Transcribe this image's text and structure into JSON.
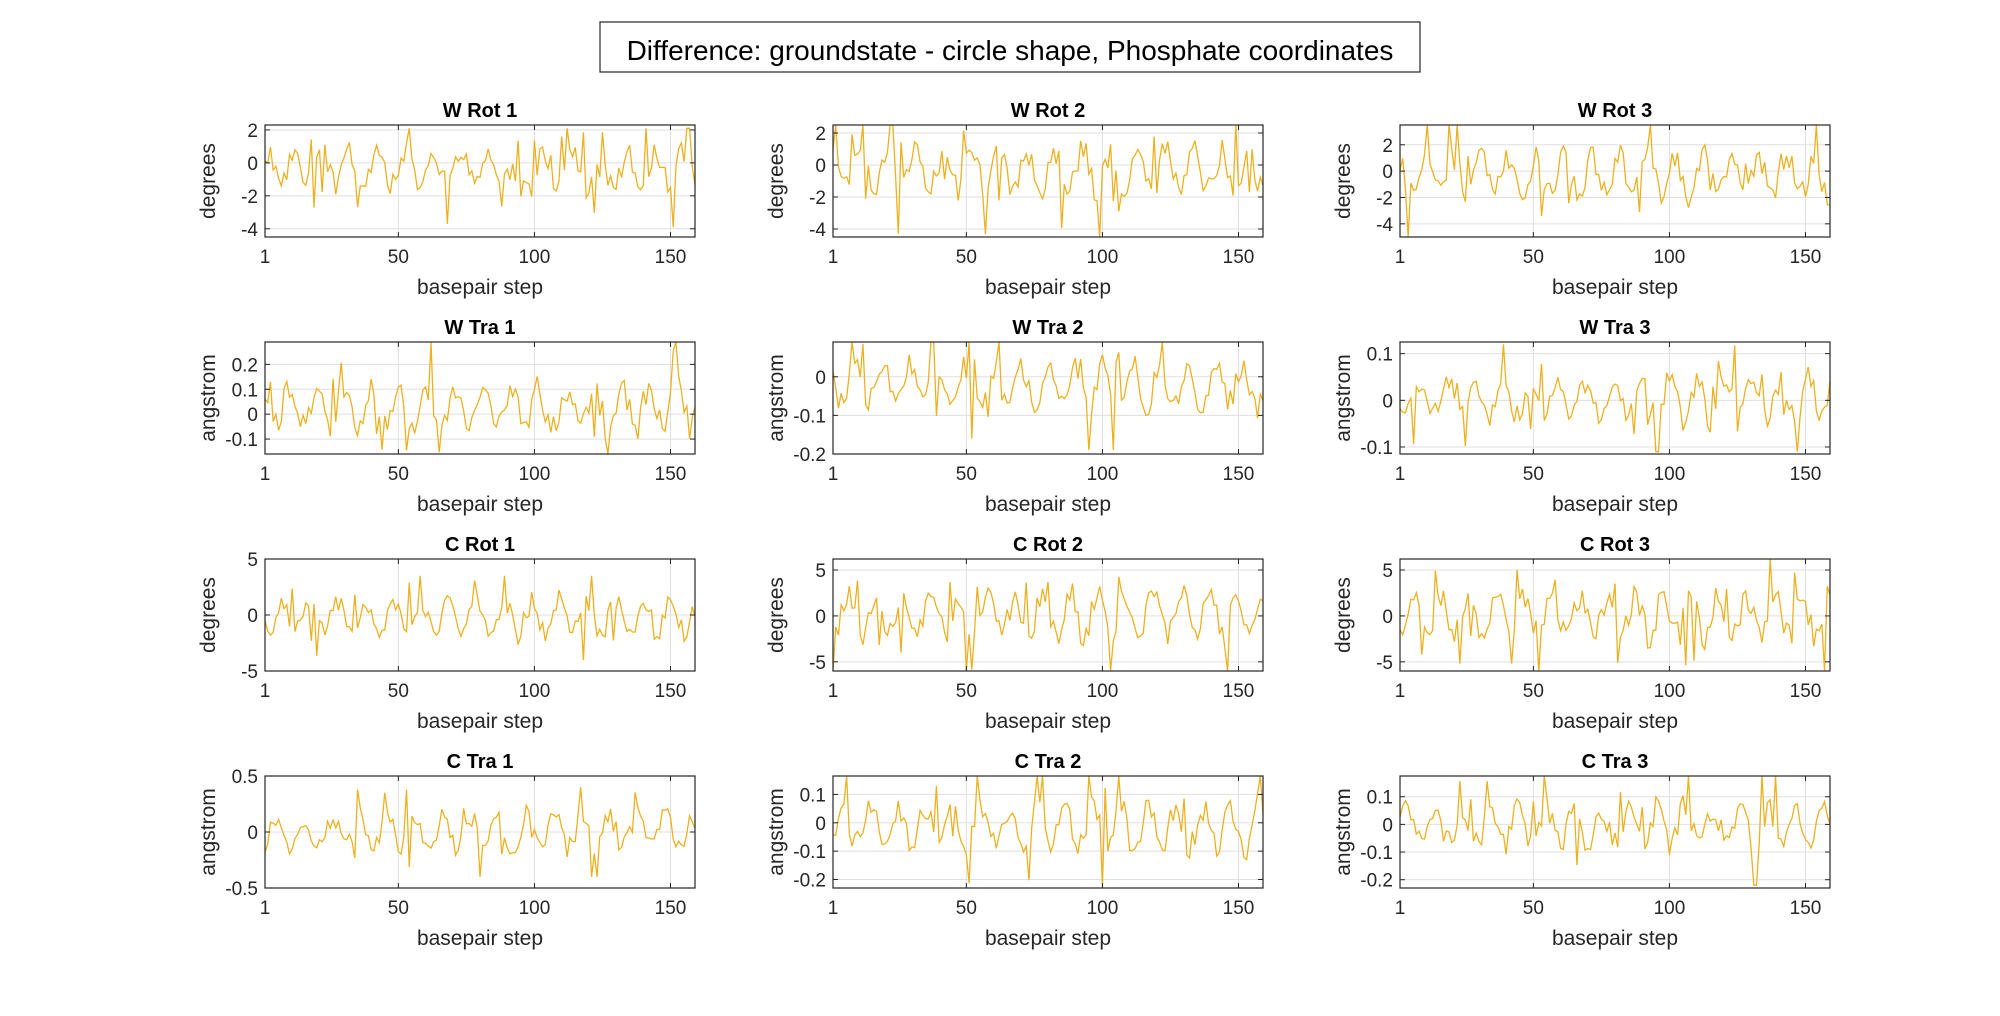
{
  "figure": {
    "title": "Difference: groundstate - circle shape, Phosphate coordinates",
    "line_color": "#EDB120",
    "axes_color": "#262626",
    "grid_color": "#DFDFDF"
  },
  "chart_data": [
    {
      "type": "line",
      "title": "W Rot 1",
      "xlabel": "basepair step",
      "ylabel": "degrees",
      "xlim": [
        1,
        159
      ],
      "ylim": [
        -4.5,
        2.3
      ],
      "xticks": [
        1,
        50,
        100,
        150
      ],
      "yticks": [
        2,
        0,
        -2,
        -4
      ],
      "grid": true,
      "n_points": 159,
      "series_seed": 11,
      "value_range": [
        -3.9,
        2.1
      ],
      "series_values": "estimated trace, 159 points"
    },
    {
      "type": "line",
      "title": "W Rot 2",
      "xlabel": "basepair step",
      "ylabel": "degrees",
      "xlim": [
        1,
        159
      ],
      "ylim": [
        -4.5,
        2.5
      ],
      "xticks": [
        1,
        50,
        100,
        150
      ],
      "yticks": [
        2,
        0,
        -2,
        -4
      ],
      "grid": true,
      "n_points": 159,
      "series_seed": 12,
      "value_range": [
        -4.5,
        2.5
      ],
      "series_values": "estimated trace, 159 points"
    },
    {
      "type": "line",
      "title": "W Rot 3",
      "xlabel": "basepair step",
      "ylabel": "degrees",
      "xlim": [
        1,
        159
      ],
      "ylim": [
        -5.0,
        3.5
      ],
      "xticks": [
        1,
        50,
        100,
        150
      ],
      "yticks": [
        2,
        0,
        -2,
        -4
      ],
      "grid": true,
      "n_points": 159,
      "series_seed": 13,
      "value_range": [
        -5.0,
        3.5
      ],
      "series_values": "estimated trace, 159 points"
    },
    {
      "type": "line",
      "title": "W Tra 1",
      "xlabel": "basepair step",
      "ylabel": "angstrom",
      "xlim": [
        1,
        159
      ],
      "ylim": [
        -0.16,
        0.29
      ],
      "xticks": [
        1,
        50,
        100,
        150
      ],
      "yticks": [
        0.2,
        0.1,
        0,
        -0.1
      ],
      "grid": true,
      "n_points": 159,
      "series_seed": 14,
      "value_range": [
        -0.16,
        0.29
      ],
      "series_values": "estimated trace, 159 points"
    },
    {
      "type": "line",
      "title": "W Tra 2",
      "xlabel": "basepair step",
      "ylabel": "angstrom",
      "xlim": [
        1,
        159
      ],
      "ylim": [
        -0.2,
        0.09
      ],
      "xticks": [
        1,
        50,
        100,
        150
      ],
      "yticks": [
        0,
        -0.1,
        -0.2
      ],
      "grid": true,
      "n_points": 159,
      "series_seed": 15,
      "value_range": [
        -0.19,
        0.09
      ],
      "series_values": "estimated trace, 159 points"
    },
    {
      "type": "line",
      "title": "W Tra 3",
      "xlabel": "basepair step",
      "ylabel": "angstrom",
      "xlim": [
        1,
        159
      ],
      "ylim": [
        -0.115,
        0.125
      ],
      "xticks": [
        1,
        50,
        100,
        150
      ],
      "yticks": [
        0.1,
        0,
        -0.1
      ],
      "grid": true,
      "n_points": 159,
      "series_seed": 16,
      "value_range": [
        -0.11,
        0.12
      ],
      "series_values": "estimated trace, 159 points"
    },
    {
      "type": "line",
      "title": "C Rot 1",
      "xlabel": "basepair step",
      "ylabel": "degrees",
      "xlim": [
        1,
        159
      ],
      "ylim": [
        -5,
        5
      ],
      "xticks": [
        1,
        50,
        100,
        150
      ],
      "yticks": [
        5,
        0,
        -5
      ],
      "grid": true,
      "n_points": 159,
      "series_seed": 17,
      "value_range": [
        -4.3,
        3.5
      ],
      "series_values": "estimated trace, 159 points"
    },
    {
      "type": "line",
      "title": "C Rot 2",
      "xlabel": "basepair step",
      "ylabel": "degrees",
      "xlim": [
        1,
        159
      ],
      "ylim": [
        -6,
        6.2
      ],
      "xticks": [
        1,
        50,
        100,
        150
      ],
      "yticks": [
        5,
        0,
        -5
      ],
      "grid": true,
      "n_points": 159,
      "series_seed": 18,
      "value_range": [
        -6.0,
        6.2
      ],
      "series_values": "estimated trace, 159 points"
    },
    {
      "type": "line",
      "title": "C Rot 3",
      "xlabel": "basepair step",
      "ylabel": "degrees",
      "xlim": [
        1,
        159
      ],
      "ylim": [
        -6,
        6.2
      ],
      "xticks": [
        1,
        50,
        100,
        150
      ],
      "yticks": [
        5,
        0,
        -5
      ],
      "grid": true,
      "n_points": 159,
      "series_seed": 19,
      "value_range": [
        -6.0,
        6.2
      ],
      "series_values": "estimated trace, 159 points"
    },
    {
      "type": "line",
      "title": "C Tra 1",
      "xlabel": "basepair step",
      "ylabel": "angstrom",
      "xlim": [
        1,
        159
      ],
      "ylim": [
        -0.5,
        0.5
      ],
      "xticks": [
        1,
        50,
        100,
        150
      ],
      "yticks": [
        0.5,
        0,
        -0.5
      ],
      "grid": true,
      "n_points": 159,
      "series_seed": 20,
      "value_range": [
        -0.4,
        0.4
      ],
      "series_values": "estimated trace, 159 points"
    },
    {
      "type": "line",
      "title": "C Tra 2",
      "xlabel": "basepair step",
      "ylabel": "angstrom",
      "xlim": [
        1,
        159
      ],
      "ylim": [
        -0.23,
        0.165
      ],
      "xticks": [
        1,
        50,
        100,
        150
      ],
      "yticks": [
        0.1,
        0,
        -0.1,
        -0.2
      ],
      "grid": true,
      "n_points": 159,
      "series_seed": 21,
      "value_range": [
        -0.23,
        0.165
      ],
      "series_values": "estimated trace, 159 points"
    },
    {
      "type": "line",
      "title": "C Tra 3",
      "xlabel": "basepair step",
      "ylabel": "angstrom",
      "xlim": [
        1,
        159
      ],
      "ylim": [
        -0.23,
        0.175
      ],
      "xticks": [
        1,
        50,
        100,
        150
      ],
      "yticks": [
        0.1,
        0,
        -0.1,
        -0.2
      ],
      "grid": true,
      "n_points": 159,
      "series_seed": 22,
      "value_range": [
        -0.22,
        0.175
      ],
      "series_values": "estimated trace, 159 points"
    }
  ]
}
